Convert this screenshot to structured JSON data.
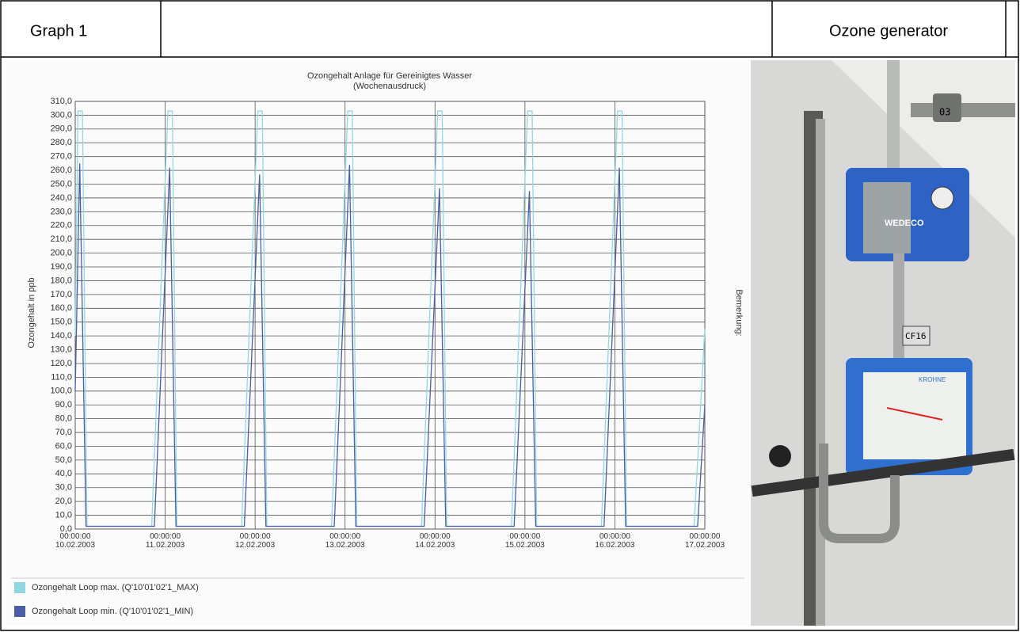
{
  "header": {
    "left_label": "Graph 1",
    "right_label": "Ozone generator"
  },
  "photo": {
    "labels": [
      "03",
      "WEDECO",
      "CF16",
      "KROHNE"
    ]
  },
  "chart_data": {
    "type": "line",
    "title": "Ozongehalt Anlage für Gereinigtes Wasser",
    "subtitle": "(Wochenausdruck)",
    "y_label": "Ozongehalt in ppb",
    "side_label": "Bemerkung:",
    "xlim": [
      0,
      7
    ],
    "xticks": [
      {
        "value": 0,
        "label": "00:00:00 10.02.2003"
      },
      {
        "value": 1,
        "label": "00:00:00 11.02.2003"
      },
      {
        "value": 2,
        "label": "00:00:00 12.02.2003"
      },
      {
        "value": 3,
        "label": "00:00:00 13.02.2003"
      },
      {
        "value": 4,
        "label": "00:00:00 14.02.2003"
      },
      {
        "value": 5,
        "label": "00:00:00 15.02.2003"
      },
      {
        "value": 6,
        "label": "00:00:00 16.02.2003"
      },
      {
        "value": 7,
        "label": "00:00:00 17.02.2003"
      }
    ],
    "ylim": [
      0,
      310
    ],
    "yticks": [
      {
        "value": 0,
        "label": "0,0"
      },
      {
        "value": 10,
        "label": "10,0"
      },
      {
        "value": 20,
        "label": "20,0"
      },
      {
        "value": 30,
        "label": "30,0"
      },
      {
        "value": 40,
        "label": "40,0"
      },
      {
        "value": 50,
        "label": "50,0"
      },
      {
        "value": 60,
        "label": "60,0"
      },
      {
        "value": 70,
        "label": "70,0"
      },
      {
        "value": 80,
        "label": "80,0"
      },
      {
        "value": 90,
        "label": "90,0"
      },
      {
        "value": 100,
        "label": "100,0"
      },
      {
        "value": 110,
        "label": "110,0"
      },
      {
        "value": 120,
        "label": "120,0"
      },
      {
        "value": 130,
        "label": "130,0"
      },
      {
        "value": 140,
        "label": "140,0"
      },
      {
        "value": 150,
        "label": "150,0"
      },
      {
        "value": 160,
        "label": "160,0"
      },
      {
        "value": 170,
        "label": "170,0"
      },
      {
        "value": 180,
        "label": "180,0"
      },
      {
        "value": 190,
        "label": "190,0"
      },
      {
        "value": 200,
        "label": "200,0"
      },
      {
        "value": 210,
        "label": "210,0"
      },
      {
        "value": 220,
        "label": "220,0"
      },
      {
        "value": 230,
        "label": "230,0"
      },
      {
        "value": 240,
        "label": "240,0"
      },
      {
        "value": 250,
        "label": "250,0"
      },
      {
        "value": 260,
        "label": "260,0"
      },
      {
        "value": 270,
        "label": "270,0"
      },
      {
        "value": 280,
        "label": "280,0"
      },
      {
        "value": 290,
        "label": "290,0"
      },
      {
        "value": 300,
        "label": "300,0"
      },
      {
        "value": 310,
        "label": "310,0"
      }
    ],
    "grid": true,
    "legend": "bottom",
    "series": [
      {
        "name": "Ozongehalt Loop max. (Q'10'01'02'1_MAX)",
        "color": "#8fd8e3",
        "x": [
          0,
          0.03,
          0.08,
          0.13,
          0.85,
          1.03,
          1.08,
          1.13,
          1.85,
          2.03,
          2.08,
          2.13,
          2.85,
          3.03,
          3.08,
          3.13,
          3.85,
          4.03,
          4.08,
          4.13,
          4.85,
          5.03,
          5.08,
          5.13,
          5.85,
          6.03,
          6.08,
          6.13,
          6.88,
          7
        ],
        "values": [
          140,
          303,
          303,
          2,
          2,
          303,
          303,
          2,
          2,
          303,
          303,
          2,
          2,
          303,
          303,
          2,
          2,
          303,
          303,
          2,
          2,
          303,
          303,
          2,
          2,
          303,
          303,
          2,
          2,
          145
        ]
      },
      {
        "name": "Ozongehalt Loop min. (Q'10'01'02'1_MIN)",
        "color": "#4a5ea8",
        "x": [
          0,
          0.05,
          0.12,
          0.88,
          1.05,
          1.12,
          1.88,
          2.05,
          2.12,
          2.88,
          3.05,
          3.12,
          3.88,
          4.05,
          4.12,
          4.88,
          5.05,
          5.12,
          5.88,
          6.05,
          6.12,
          6.92,
          7
        ],
        "values": [
          100,
          265,
          2,
          2,
          262,
          2,
          2,
          257,
          2,
          2,
          264,
          2,
          2,
          247,
          2,
          2,
          245,
          2,
          2,
          262,
          2,
          2,
          90
        ]
      }
    ]
  }
}
